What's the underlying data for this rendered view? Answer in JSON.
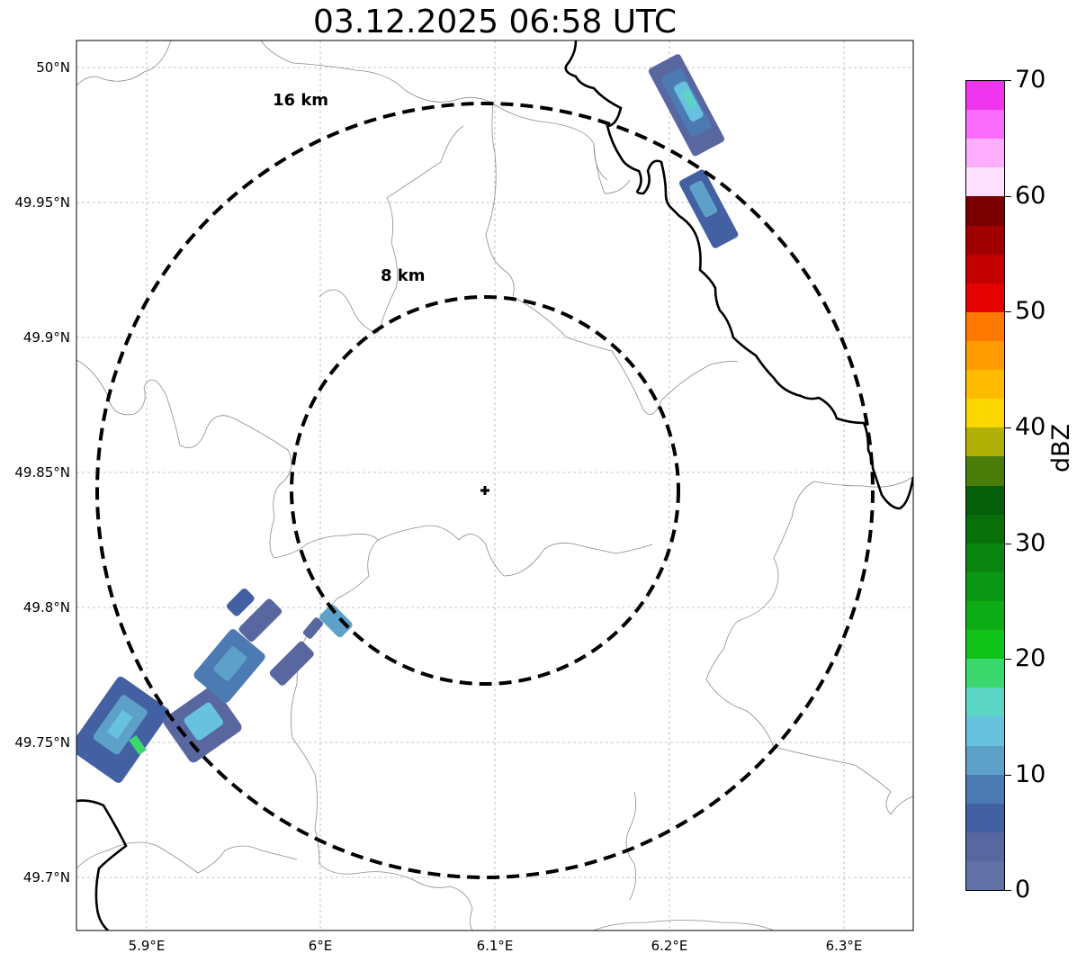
{
  "title": "03.12.2025 06:58 UTC",
  "map": {
    "lat_ticks": [
      "50°N",
      "49.95°N",
      "49.9°N",
      "49.85°N",
      "49.8°N",
      "49.75°N",
      "49.7°N"
    ],
    "lon_ticks": [
      "5.9°E",
      "6°E",
      "6.1°E",
      "6.2°E",
      "6.3°E"
    ],
    "rings": [
      {
        "label": "16 km",
        "radius_km": 16
      },
      {
        "label": "8 km",
        "radius_km": 8
      }
    ],
    "radar_marker": "radar-site-cross"
  },
  "colorbar": {
    "label": "dBZ",
    "ticks": [
      "70",
      "60",
      "50",
      "40",
      "30",
      "20",
      "10",
      "0"
    ],
    "colors": [
      "#ef35ed",
      "#fa6cfa",
      "#fdaefe",
      "#fde0fd",
      "#7a0000",
      "#a00000",
      "#c30101",
      "#e50100",
      "#ff7900",
      "#ff9c00",
      "#ffbb00",
      "#fdd800",
      "#b0b007",
      "#4a7c0a",
      "#055e0a",
      "#086f0b",
      "#0a8610",
      "#0a9814",
      "#0ead17",
      "#10c41a",
      "#3bd86e",
      "#5cd6c4",
      "#66c2de",
      "#5da1c8",
      "#4c7bb3",
      "#4360a3",
      "#5867a0",
      "#6171a6"
    ]
  },
  "colors": {
    "ring": "#000000",
    "border": "#000000",
    "admin": "#8c8c8c",
    "grid": "#b4b4b4"
  }
}
